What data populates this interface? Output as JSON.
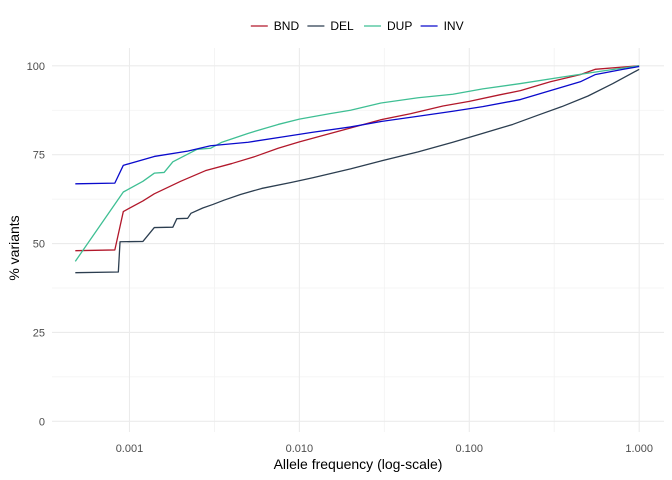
{
  "chart_data": {
    "type": "line",
    "xlabel": "Allele frequency (log-scale)",
    "ylabel": "% variants",
    "x_scale": "log10",
    "xlim": [
      0.00035,
      1.4
    ],
    "ylim": [
      -3,
      105
    ],
    "x_ticks": [
      {
        "value": 0.001,
        "label": "0.001"
      },
      {
        "value": 0.01,
        "label": "0.010"
      },
      {
        "value": 0.1,
        "label": "0.100"
      },
      {
        "value": 1,
        "label": "1.000"
      }
    ],
    "y_ticks": [
      {
        "value": 0,
        "label": "0"
      },
      {
        "value": 25,
        "label": "25"
      },
      {
        "value": 50,
        "label": "50"
      },
      {
        "value": 75,
        "label": "75"
      },
      {
        "value": 100,
        "label": "100"
      }
    ],
    "grid": true,
    "legend_position": "top",
    "series": [
      {
        "name": "BND",
        "color": "#b2182b",
        "points": [
          [
            0.00048,
            48.0
          ],
          [
            0.00082,
            48.2
          ],
          [
            0.00092,
            59.0
          ],
          [
            0.0012,
            62.0
          ],
          [
            0.0014,
            64.0
          ],
          [
            0.002,
            67.5
          ],
          [
            0.0028,
            70.5
          ],
          [
            0.004,
            72.5
          ],
          [
            0.0055,
            74.5
          ],
          [
            0.0075,
            76.8
          ],
          [
            0.01,
            78.6
          ],
          [
            0.014,
            80.5
          ],
          [
            0.02,
            82.5
          ],
          [
            0.03,
            84.8
          ],
          [
            0.045,
            86.5
          ],
          [
            0.07,
            88.7
          ],
          [
            0.1,
            90.0
          ],
          [
            0.15,
            91.8
          ],
          [
            0.2,
            93.0
          ],
          [
            0.3,
            95.5
          ],
          [
            0.45,
            97.5
          ],
          [
            0.55,
            99.0
          ],
          [
            1.0,
            100.0
          ]
        ]
      },
      {
        "name": "DEL",
        "color": "#2c3e50",
        "points": [
          [
            0.00048,
            41.8
          ],
          [
            0.00086,
            42.0
          ],
          [
            0.00088,
            50.5
          ],
          [
            0.0012,
            50.6
          ],
          [
            0.0014,
            54.5
          ],
          [
            0.0018,
            54.6
          ],
          [
            0.0019,
            57.0
          ],
          [
            0.0022,
            57.1
          ],
          [
            0.0023,
            58.5
          ],
          [
            0.0027,
            60.0
          ],
          [
            0.0031,
            61.0
          ],
          [
            0.0036,
            62.2
          ],
          [
            0.0045,
            63.8
          ],
          [
            0.006,
            65.5
          ],
          [
            0.009,
            67.2
          ],
          [
            0.012,
            68.5
          ],
          [
            0.02,
            71.0
          ],
          [
            0.03,
            73.2
          ],
          [
            0.05,
            75.8
          ],
          [
            0.08,
            78.5
          ],
          [
            0.12,
            81.0
          ],
          [
            0.18,
            83.5
          ],
          [
            0.25,
            86.0
          ],
          [
            0.35,
            88.5
          ],
          [
            0.5,
            91.5
          ],
          [
            0.7,
            95.0
          ],
          [
            1.0,
            99.0
          ]
        ]
      },
      {
        "name": "DUP",
        "color": "#3fbf94",
        "points": [
          [
            0.00048,
            45.0
          ],
          [
            0.00092,
            64.5
          ],
          [
            0.0012,
            67.5
          ],
          [
            0.0014,
            69.8
          ],
          [
            0.0016,
            70.0
          ],
          [
            0.0018,
            73.0
          ],
          [
            0.0025,
            76.5
          ],
          [
            0.003,
            76.8
          ],
          [
            0.0035,
            78.5
          ],
          [
            0.005,
            81.0
          ],
          [
            0.0075,
            83.5
          ],
          [
            0.01,
            85.0
          ],
          [
            0.015,
            86.5
          ],
          [
            0.02,
            87.5
          ],
          [
            0.03,
            89.5
          ],
          [
            0.05,
            91.0
          ],
          [
            0.08,
            92.0
          ],
          [
            0.12,
            93.5
          ],
          [
            0.2,
            95.0
          ],
          [
            0.35,
            96.8
          ],
          [
            0.6,
            98.5
          ],
          [
            1.0,
            100.0
          ]
        ]
      },
      {
        "name": "INV",
        "color": "#0a0acc",
        "points": [
          [
            0.00048,
            66.8
          ],
          [
            0.00082,
            67.0
          ],
          [
            0.00092,
            72.0
          ],
          [
            0.0014,
            74.5
          ],
          [
            0.0022,
            76.0
          ],
          [
            0.003,
            77.5
          ],
          [
            0.005,
            78.5
          ],
          [
            0.008,
            80.0
          ],
          [
            0.012,
            81.3
          ],
          [
            0.02,
            82.8
          ],
          [
            0.03,
            84.3
          ],
          [
            0.05,
            85.8
          ],
          [
            0.08,
            87.2
          ],
          [
            0.12,
            88.5
          ],
          [
            0.2,
            90.5
          ],
          [
            0.3,
            93.0
          ],
          [
            0.45,
            95.5
          ],
          [
            0.55,
            97.5
          ],
          [
            0.8,
            99.0
          ],
          [
            1.0,
            99.8
          ]
        ]
      }
    ]
  }
}
